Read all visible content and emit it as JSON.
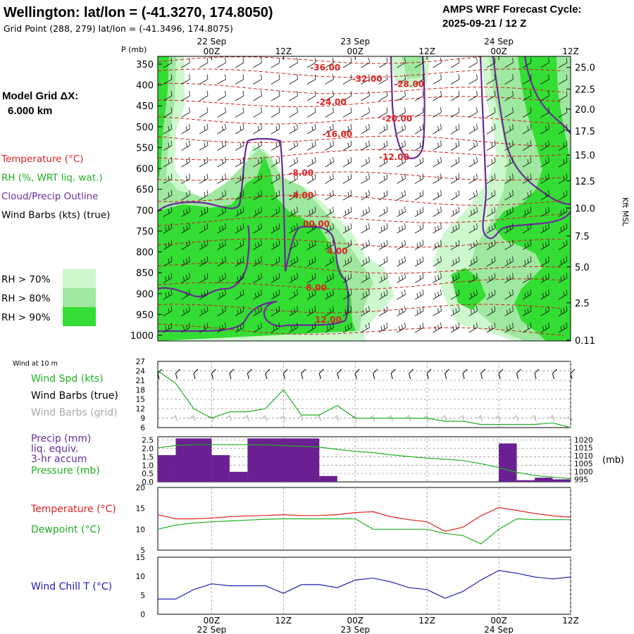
{
  "header": {
    "title": "Wellington:  lat/lon = (-41.3270, 174.8050)",
    "grid_point": "Grid Point (288, 279) lat/lon = (-41.3496, 174.8075)",
    "cycle_label": "AMPS WRF Forecast Cycle:",
    "cycle_value": "2025-09-21 / 12  Z"
  },
  "left_panel": {
    "model_grid_label": "Model Grid ΔX:",
    "model_grid_value": "6.000 km",
    "legend_items": [
      {
        "text": "Temperature (°C)",
        "color": "#e02020"
      },
      {
        "text": "RH (%, WRT liq. wat.)",
        "color": "#20b020"
      },
      {
        "text": "Cloud/Precip Outline",
        "color": "#6a2a9a"
      },
      {
        "text": "Wind Barbs (kts) (true)",
        "color": "#000000"
      }
    ],
    "rh_legend": [
      {
        "text": "RH > 70%",
        "color": "#cdf7cd"
      },
      {
        "text": "RH > 80%",
        "color": "#9fe89f"
      },
      {
        "text": "RH > 90%",
        "color": "#33dd33"
      }
    ]
  },
  "time_axis": {
    "hours": [
      0,
      12,
      24,
      36,
      48,
      60
    ],
    "tick_labels": [
      "00Z",
      "12Z",
      "00Z",
      "12Z",
      "00Z",
      "12Z"
    ],
    "date_labels": [
      {
        "text": "22 Sep",
        "hour": 0
      },
      {
        "text": "23 Sep",
        "hour": 24
      },
      {
        "text": "24 Sep",
        "hour": 48
      }
    ],
    "xlim": [
      -9,
      60
    ]
  },
  "chart_data": [
    {
      "type": "heatmap",
      "title": "Vertical cross-section",
      "ylabel": "P (mb)",
      "ylabel_right": "Kft MSL",
      "pressure_ticks": [
        350,
        400,
        450,
        500,
        550,
        600,
        650,
        700,
        750,
        800,
        850,
        900,
        950,
        1000
      ],
      "height_ticks": [
        {
          "p": 358,
          "label": "25.0"
        },
        {
          "p": 410,
          "label": "22.5"
        },
        {
          "p": 458,
          "label": "20.0"
        },
        {
          "p": 510,
          "label": "17.5"
        },
        {
          "p": 568,
          "label": "15.0"
        },
        {
          "p": 630,
          "label": "12.5"
        },
        {
          "p": 695,
          "label": "10.0"
        },
        {
          "p": 762,
          "label": "7.5"
        },
        {
          "p": 836,
          "label": "5.0"
        },
        {
          "p": 922,
          "label": "2.5"
        },
        {
          "p": 1012,
          "label": "0.11"
        }
      ],
      "temperature_labels": [
        {
          "text": "-36.00",
          "hour": 19,
          "p": 365
        },
        {
          "text": "-32.00",
          "hour": 26,
          "p": 392
        },
        {
          "text": "-28.00",
          "hour": 33,
          "p": 405
        },
        {
          "text": "-24.00",
          "hour": 20,
          "p": 448
        },
        {
          "text": "-20.00",
          "hour": 31,
          "p": 488
        },
        {
          "text": "-16.00",
          "hour": 21,
          "p": 525
        },
        {
          "text": "-12.00",
          "hour": 30.5,
          "p": 580
        },
        {
          "text": "-8.00",
          "hour": 15,
          "p": 618
        },
        {
          "text": "-4.00",
          "hour": 15,
          "p": 672
        },
        {
          "text": "00.00",
          "hour": 17.5,
          "p": 740
        },
        {
          "text": "4.00",
          "hour": 21,
          "p": 805
        },
        {
          "text": "8.00",
          "hour": 17.5,
          "p": 893
        },
        {
          "text": "12.00",
          "hour": 19.5,
          "p": 970
        }
      ]
    },
    {
      "type": "line",
      "title": "Wind at 10 m",
      "labels": [
        {
          "text": "Wind Spd (kts)",
          "color": "#20b020"
        },
        {
          "text": "Wind Barbs (true)",
          "color": "#000000"
        },
        {
          "text": "Wind Barbs (grid)",
          "color": "#aaaaaa"
        }
      ],
      "yticks": [
        6,
        9,
        12,
        15,
        18,
        21,
        24,
        27
      ],
      "ylim": [
        6,
        27
      ],
      "series": [
        {
          "name": "Wind Spd (kts)",
          "color": "#20b020",
          "x": [
            -9,
            -6,
            -3,
            0,
            3,
            6,
            9,
            12,
            15,
            18,
            21,
            24,
            27,
            30,
            33,
            36,
            39,
            42,
            45,
            48,
            51,
            54,
            57,
            60
          ],
          "values": [
            24,
            20,
            12,
            9,
            11,
            11,
            12,
            18,
            10,
            10,
            13,
            9,
            9,
            9,
            9,
            9,
            8,
            8,
            7,
            7,
            7,
            7,
            7.5,
            6
          ]
        }
      ]
    },
    {
      "type": "bar",
      "labels": [
        {
          "text": "Precip (mm)",
          "color": "#6a2a9a"
        },
        {
          "text": "liq. equiv.",
          "color": "#6a2a9a"
        },
        {
          "text": "3-hr accum",
          "color": "#6a2a9a"
        },
        {
          "text": "Pressure (mb)",
          "color": "#20b020"
        }
      ],
      "yticks": [
        0.0,
        0.5,
        1.0,
        1.5,
        2.0,
        2.5
      ],
      "ylim": [
        0,
        2.7
      ],
      "y2ticks": [
        995,
        1000,
        1005,
        1010,
        1015,
        1020
      ],
      "y2lim": [
        993.5,
        1022
      ],
      "y2label": "(mb)",
      "bars": [
        {
          "start": -9,
          "end": -6,
          "value": 1.6
        },
        {
          "start": -6,
          "end": 0,
          "value": 2.6
        },
        {
          "start": 0,
          "end": 3,
          "value": 1.6
        },
        {
          "start": 3,
          "end": 6,
          "value": 0.6
        },
        {
          "start": 6,
          "end": 18,
          "value": 2.6
        },
        {
          "start": 18,
          "end": 21,
          "value": 0.35
        },
        {
          "start": 48,
          "end": 51,
          "value": 2.3
        },
        {
          "start": 51,
          "end": 54,
          "value": 0.1
        },
        {
          "start": 54,
          "end": 57,
          "value": 0.25
        },
        {
          "start": 57,
          "end": 60,
          "value": 0.15
        }
      ],
      "pressure": {
        "x": [
          -9,
          -6,
          -3,
          0,
          3,
          6,
          9,
          12,
          15,
          18,
          21,
          24,
          27,
          30,
          33,
          36,
          39,
          42,
          45,
          48,
          51,
          54,
          57,
          60
        ],
        "values": [
          1015,
          1016.5,
          1017,
          1017,
          1017,
          1017,
          1016.8,
          1016.5,
          1016,
          1015.5,
          1014,
          1012.8,
          1012,
          1010.6,
          1009.5,
          1008.5,
          1007.8,
          1007,
          1005,
          1002.5,
          999.5,
          997.5,
          996.5,
          995.5
        ]
      }
    },
    {
      "type": "line",
      "yticks": [
        5,
        10,
        15,
        20
      ],
      "ylim": [
        5,
        20
      ],
      "series": [
        {
          "name": "Temperature (°C)",
          "color": "#e02020",
          "x": [
            -9,
            -6,
            -3,
            0,
            3,
            6,
            9,
            12,
            15,
            18,
            21,
            24,
            27,
            30,
            33,
            36,
            39,
            42,
            45,
            48,
            51,
            54,
            57,
            60
          ],
          "values": [
            13.5,
            12.5,
            12.5,
            12.7,
            13,
            13.2,
            13.3,
            13.5,
            13.3,
            13.3,
            13.5,
            14,
            14.2,
            13,
            12.3,
            11.8,
            9.5,
            10.5,
            13.2,
            15.2,
            14.5,
            13.8,
            13.2,
            12.9
          ]
        },
        {
          "name": "Dewpoint (°C)",
          "color": "#20b020",
          "x": [
            -9,
            -6,
            -3,
            0,
            3,
            6,
            9,
            12,
            15,
            18,
            21,
            24,
            27,
            30,
            33,
            36,
            39,
            42,
            45,
            48,
            51,
            54,
            57,
            60
          ],
          "values": [
            10,
            11,
            11.5,
            11.8,
            12,
            12.2,
            12.4,
            12.5,
            12.5,
            12.5,
            12.5,
            12.5,
            10,
            10,
            10,
            10,
            9,
            8.5,
            6.5,
            10,
            12.5,
            12.3,
            12.3,
            12.3
          ]
        }
      ]
    },
    {
      "type": "line",
      "yticks": [
        0,
        5,
        10,
        15
      ],
      "ylim": [
        0,
        15
      ],
      "series": [
        {
          "name": "Wind Chill T (°C)",
          "color": "#2020b0",
          "x": [
            -9,
            -6,
            -3,
            0,
            3,
            6,
            9,
            12,
            15,
            18,
            21,
            24,
            27,
            30,
            33,
            36,
            39,
            42,
            45,
            48,
            51,
            54,
            57,
            60
          ],
          "values": [
            4,
            4,
            6.5,
            8,
            7.5,
            7.5,
            7.5,
            5.5,
            7.8,
            7.8,
            7,
            9,
            9.5,
            8.5,
            7,
            6.5,
            4.2,
            6,
            9,
            11.5,
            10.8,
            9.8,
            9.3,
            9.8
          ]
        }
      ]
    }
  ]
}
